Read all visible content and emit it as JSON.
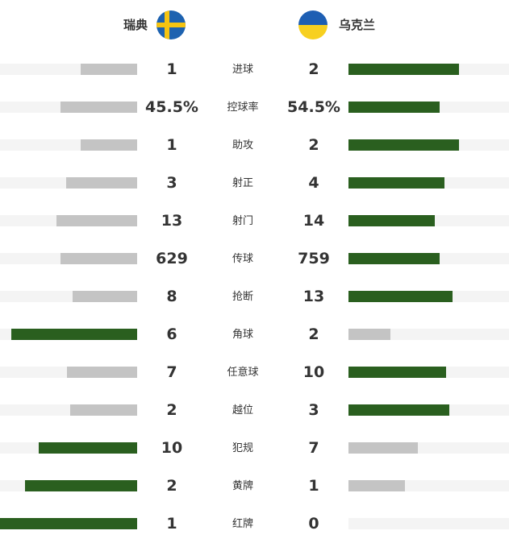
{
  "colors": {
    "leading_bar": "#2a5f1f",
    "trailing_bar": "#c4c4c4",
    "track": "#f4f4f4"
  },
  "header": {
    "home_team": "瑞典",
    "home_flag_icon": "sweden-flag-icon",
    "away_team": "乌克兰",
    "away_flag_icon": "ukraine-flag-icon"
  },
  "stats": [
    {
      "label": "进球",
      "home": "1",
      "away": "2",
      "home_fill": 0.41,
      "away_fill": 0.69,
      "leader": "away"
    },
    {
      "label": "控球率",
      "home": "45.5%",
      "away": "54.5%",
      "home_fill": 0.56,
      "away_fill": 0.57,
      "leader": "away"
    },
    {
      "label": "助攻",
      "home": "1",
      "away": "2",
      "home_fill": 0.41,
      "away_fill": 0.69,
      "leader": "away"
    },
    {
      "label": "射正",
      "home": "3",
      "away": "4",
      "home_fill": 0.52,
      "away_fill": 0.6,
      "leader": "away"
    },
    {
      "label": "射门",
      "home": "13",
      "away": "14",
      "home_fill": 0.59,
      "away_fill": 0.54,
      "leader": "away"
    },
    {
      "label": "传球",
      "home": "629",
      "away": "759",
      "home_fill": 0.56,
      "away_fill": 0.57,
      "leader": "away"
    },
    {
      "label": "抢断",
      "home": "8",
      "away": "13",
      "home_fill": 0.47,
      "away_fill": 0.65,
      "leader": "away"
    },
    {
      "label": "角球",
      "home": "6",
      "away": "2",
      "home_fill": 0.92,
      "away_fill": 0.26,
      "leader": "home"
    },
    {
      "label": "任意球",
      "home": "7",
      "away": "10",
      "home_fill": 0.51,
      "away_fill": 0.61,
      "leader": "away"
    },
    {
      "label": "越位",
      "home": "2",
      "away": "3",
      "home_fill": 0.49,
      "away_fill": 0.63,
      "leader": "away"
    },
    {
      "label": "犯规",
      "home": "10",
      "away": "7",
      "home_fill": 0.72,
      "away_fill": 0.43,
      "leader": "home"
    },
    {
      "label": "黄牌",
      "home": "2",
      "away": "1",
      "home_fill": 0.82,
      "away_fill": 0.35,
      "leader": "home"
    },
    {
      "label": "红牌",
      "home": "1",
      "away": "0",
      "home_fill": 1.0,
      "away_fill": 0.0,
      "leader": "home"
    }
  ]
}
